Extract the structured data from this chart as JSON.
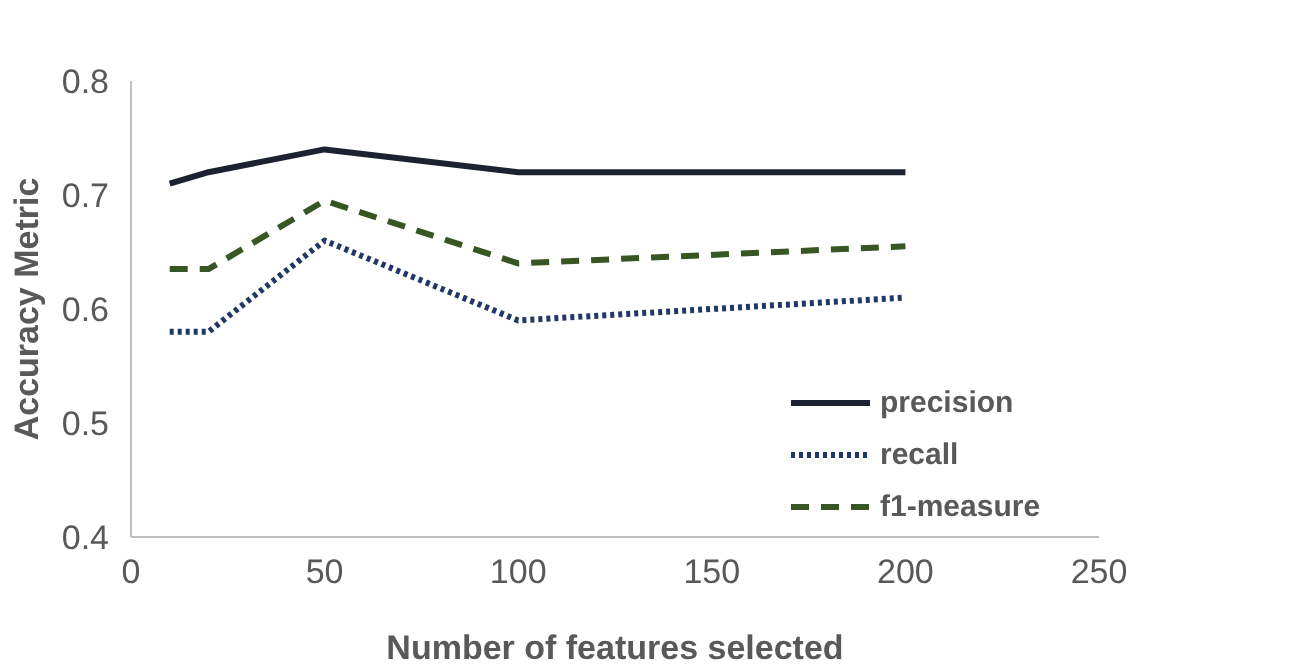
{
  "chart_data": {
    "type": "line",
    "xlabel": "Number of features selected",
    "ylabel": "Accuracy Metric",
    "x": [
      10,
      20,
      50,
      100,
      200
    ],
    "series": [
      {
        "name": "precision",
        "color": "#1c2230",
        "values": [
          0.71,
          0.72,
          0.74,
          0.72,
          0.72
        ],
        "line_style": "solid"
      },
      {
        "name": "recall",
        "color": "#203864",
        "values": [
          0.58,
          0.58,
          0.66,
          0.59,
          0.61
        ],
        "line_style": "dotted"
      },
      {
        "name": "f1-measure",
        "color": "#375623",
        "values": [
          0.635,
          0.635,
          0.695,
          0.64,
          0.655
        ],
        "line_style": "dashed"
      }
    ],
    "xlim": [
      0,
      250
    ],
    "xticks": [
      0,
      50,
      100,
      150,
      200,
      250
    ],
    "ylim": [
      0.4,
      0.8
    ],
    "yticks": [
      0.4,
      0.5,
      0.6,
      0.7,
      0.8
    ],
    "grid": false,
    "legend": "right",
    "marker": "none"
  }
}
